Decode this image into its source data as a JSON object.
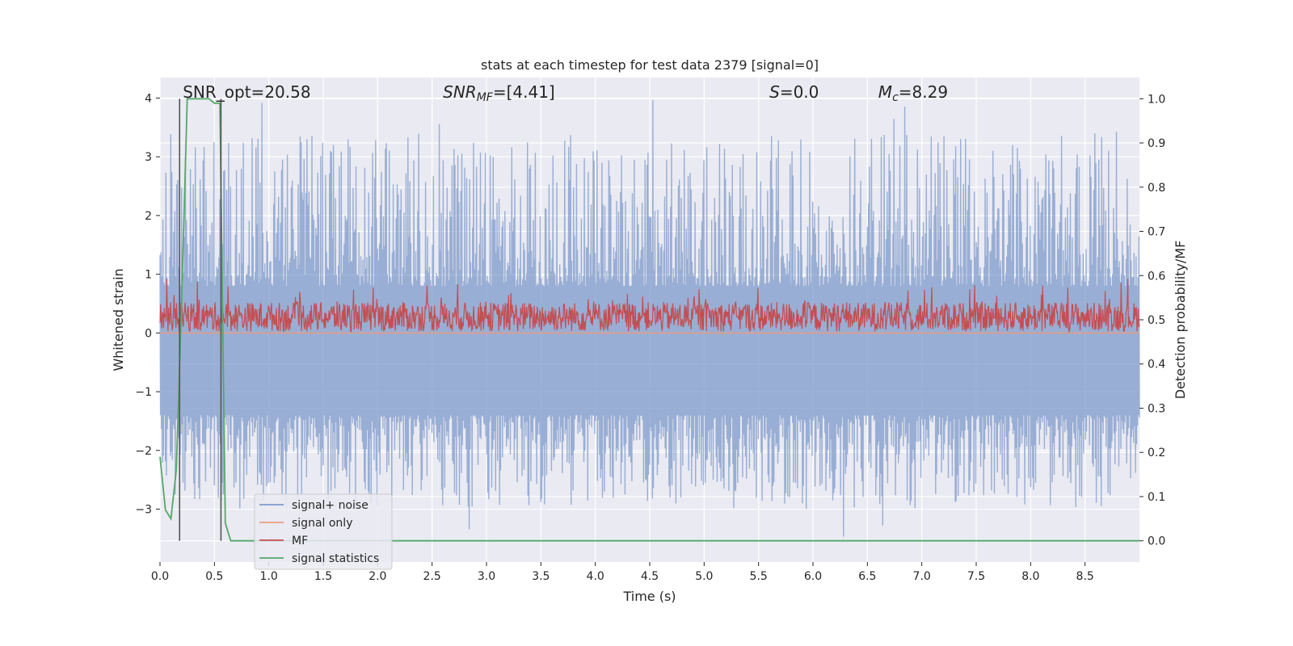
{
  "chart_data": {
    "type": "line",
    "title": "stats at each timestep for test data 2379 [signal=0]",
    "xlabel": "Time (s)",
    "ylabel": "Whitened strain",
    "y2label": "Detection probability/MF",
    "xlim": [
      0.0,
      9.0
    ],
    "ylim": [
      -3.9,
      4.35
    ],
    "y2lim": [
      -0.048,
      1.048
    ],
    "x_ticks": [
      0.0,
      0.5,
      1.0,
      1.5,
      2.0,
      2.5,
      3.0,
      3.5,
      4.0,
      4.5,
      5.0,
      5.5,
      6.0,
      6.5,
      7.0,
      7.5,
      8.0,
      8.5
    ],
    "x_tick_labels": [
      "0.0",
      "0.5",
      "1.0",
      "1.5",
      "2.0",
      "2.5",
      "3.0",
      "3.5",
      "4.0",
      "4.5",
      "5.0",
      "5.5",
      "6.0",
      "6.5",
      "7.0",
      "7.5",
      "8.0",
      "8.5"
    ],
    "y_ticks": [
      -3,
      -2,
      -1,
      0,
      1,
      2,
      3,
      4
    ],
    "y_tick_labels": [
      "−3",
      "−2",
      "−1",
      "0",
      "1",
      "2",
      "3",
      "4"
    ],
    "y2_ticks": [
      0.0,
      0.1,
      0.2,
      0.3,
      0.4,
      0.5,
      0.6,
      0.7,
      0.8,
      0.9,
      1.0
    ],
    "y2_tick_labels": [
      "0.0",
      "0.1",
      "0.2",
      "0.3",
      "0.4",
      "0.5",
      "0.6",
      "0.7",
      "0.8",
      "0.9",
      "1.0"
    ],
    "grid": true,
    "legend_position": "lower-left",
    "series": [
      {
        "name": "signal+ noise",
        "axis": "left",
        "color": "#7e9aca",
        "description_stats": {
          "positive_peak_range": [
            0.8,
            3.9
          ],
          "negative_peak_range": [
            -1.4,
            -3.4
          ],
          "n_points": 2000
        }
      },
      {
        "name": "signal only",
        "axis": "left",
        "color": "#e89c80",
        "values_constant": 0.0
      },
      {
        "name": "MF",
        "axis": "left",
        "color": "#c44e52",
        "description_stats": {
          "baseline": 0.2,
          "range": [
            0.0,
            1.0
          ]
        }
      },
      {
        "name": "signal statistics",
        "axis": "right",
        "color": "#55a868",
        "x": [
          0.0,
          0.05,
          0.1,
          0.15,
          0.2,
          0.25,
          0.3,
          0.35,
          0.4,
          0.45,
          0.5,
          0.55,
          0.6,
          0.65,
          0.7,
          0.75,
          0.8,
          0.85,
          0.9,
          1.0,
          2.0,
          3.0,
          4.0,
          5.0,
          6.0,
          7.0,
          8.0,
          9.0
        ],
        "y": [
          0.19,
          0.07,
          0.05,
          0.16,
          0.55,
          1.0,
          1.0,
          1.0,
          1.0,
          1.0,
          0.99,
          0.99,
          0.04,
          0.0,
          0.0,
          0.0,
          0.0,
          0.0,
          0.0,
          0.0,
          0.0,
          0.0,
          0.0,
          0.0,
          0.0,
          0.0,
          0.0,
          0.0
        ]
      }
    ],
    "vlines": [
      0.18,
      0.56
    ],
    "annotations": [
      {
        "text": "SNR_opt=20.58",
        "x": 0.18
      },
      {
        "text_main": "SNR",
        "text_sub": "MF",
        "text_rest": "=[4.41]",
        "x": 2.6
      },
      {
        "text_main": "S",
        "text_rest": "=0.0",
        "x": 5.6
      },
      {
        "text_main": "M",
        "text_sub": "c",
        "text_rest": "=8.29",
        "x": 6.6
      }
    ]
  },
  "legend": {
    "items": [
      {
        "label": "signal+ noise",
        "color": "#7e9aca"
      },
      {
        "label": "signal only",
        "color": "#e89c80"
      },
      {
        "label": "MF",
        "color": "#c44e52"
      },
      {
        "label": "signal statistics",
        "color": "#55a868"
      }
    ]
  },
  "colors": {
    "plot_bg": "#eaeaf2",
    "grid": "#ffffff",
    "text": "#262626"
  }
}
